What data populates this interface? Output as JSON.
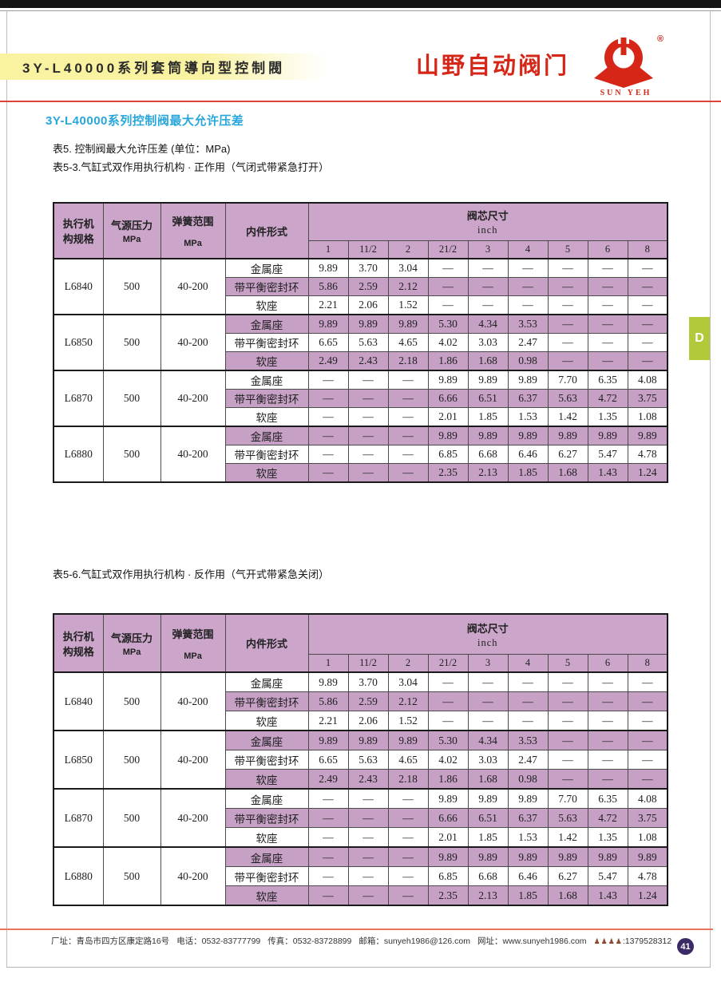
{
  "page": {
    "title": "3Y-L40000系列套筒導向型控制閥",
    "section_heading": "3Y-L40000系列控制阀最大允许压差",
    "caption_unit": "表5. 控制阀最大允许压差 (单位：MPa)",
    "side_tab": "D",
    "page_number": "41"
  },
  "logo": {
    "text": "山野自动阀门",
    "registered": "®",
    "subtext": "SUN YEH",
    "mark_icon": "valve-emblem-icon"
  },
  "tables": [
    {
      "caption": "表5-3.气缸式双作用执行机构 · 正作用（气闭式带紧急打开）"
    },
    {
      "caption": "表5-6.气缸式双作用执行机构 · 反作用（气开式带紧急关闭）"
    }
  ],
  "table_def": {
    "col_headers": {
      "actuator": "执行机构规格",
      "pressure": "气源压力",
      "pressure_unit": "MPa",
      "spring": "弹簧范围",
      "spring_unit": "MPa",
      "trim": "内件形式",
      "size_group": "阀芯尺寸",
      "size_unit": "inch",
      "sizes": [
        "1",
        "11/2",
        "2",
        "21/2",
        "3",
        "4",
        "5",
        "6",
        "8"
      ]
    },
    "groups": [
      {
        "model": "L6840",
        "pressure": "500",
        "spring": "40-200",
        "rows": [
          {
            "trim": "金属座",
            "values": [
              "9.89",
              "3.70",
              "3.04",
              "—",
              "—",
              "—",
              "—",
              "—",
              "—"
            ]
          },
          {
            "trim": "带平衡密封环",
            "values": [
              "5.86",
              "2.59",
              "2.12",
              "—",
              "—",
              "—",
              "—",
              "—",
              "—"
            ]
          },
          {
            "trim": "软座",
            "values": [
              "2.21",
              "2.06",
              "1.52",
              "—",
              "—",
              "—",
              "—",
              "—",
              "—"
            ]
          }
        ]
      },
      {
        "model": "L6850",
        "pressure": "500",
        "spring": "40-200",
        "rows": [
          {
            "trim": "金属座",
            "values": [
              "9.89",
              "9.89",
              "9.89",
              "5.30",
              "4.34",
              "3.53",
              "—",
              "—",
              "—"
            ]
          },
          {
            "trim": "带平衡密封环",
            "values": [
              "6.65",
              "5.63",
              "4.65",
              "4.02",
              "3.03",
              "2.47",
              "—",
              "—",
              "—"
            ]
          },
          {
            "trim": "软座",
            "values": [
              "2.49",
              "2.43",
              "2.18",
              "1.86",
              "1.68",
              "0.98",
              "—",
              "—",
              "—"
            ]
          }
        ]
      },
      {
        "model": "L6870",
        "pressure": "500",
        "spring": "40-200",
        "rows": [
          {
            "trim": "金属座",
            "values": [
              "—",
              "—",
              "—",
              "9.89",
              "9.89",
              "9.89",
              "7.70",
              "6.35",
              "4.08"
            ]
          },
          {
            "trim": "带平衡密封环",
            "values": [
              "—",
              "—",
              "—",
              "6.66",
              "6.51",
              "6.37",
              "5.63",
              "4.72",
              "3.75"
            ]
          },
          {
            "trim": "软座",
            "values": [
              "—",
              "—",
              "—",
              "2.01",
              "1.85",
              "1.53",
              "1.42",
              "1.35",
              "1.08"
            ]
          }
        ]
      },
      {
        "model": "L6880",
        "pressure": "500",
        "spring": "40-200",
        "rows": [
          {
            "trim": "金属座",
            "values": [
              "—",
              "—",
              "—",
              "9.89",
              "9.89",
              "9.89",
              "9.89",
              "9.89",
              "9.89"
            ]
          },
          {
            "trim": "带平衡密封环",
            "values": [
              "—",
              "—",
              "—",
              "6.85",
              "6.68",
              "6.46",
              "6.27",
              "5.47",
              "4.78"
            ]
          },
          {
            "trim": "软座",
            "values": [
              "—",
              "—",
              "—",
              "2.35",
              "2.13",
              "1.85",
              "1.68",
              "1.43",
              "1.24"
            ]
          }
        ]
      }
    ]
  },
  "footer": {
    "address": "厂址：青岛市四方区康定路16号",
    "phone": "电话：0532-83777799",
    "fax": "传真：0532-83728899",
    "email": "邮箱：sunyeh1986@126.com",
    "website": "网址：www.sunyeh1986.com",
    "contact_icons": "♟♟♟♟",
    "mobile": ":1379528312"
  },
  "colors": {
    "accent_red": "#d62618",
    "heading_blue": "#29a7db",
    "table_purple_header": "#cba6ca",
    "table_purple_stripe": "#c6a0c5",
    "tab_green": "#b2c93a",
    "badge_purple": "#3a2b66",
    "band_yellow": "#f9f2a0"
  }
}
